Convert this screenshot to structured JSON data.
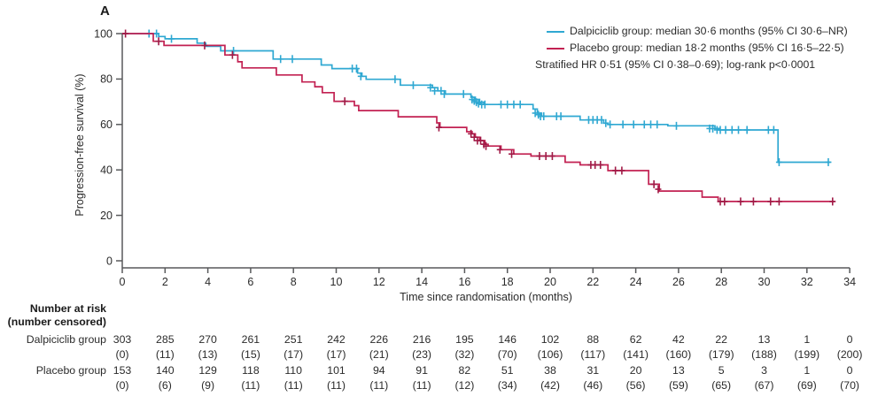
{
  "panel_label": "A",
  "colors": {
    "dalpiciclib": "#2FA8D2",
    "dalpiciclib_censor": "#2FA8D2",
    "placebo": "#C22152",
    "placebo_censor": "#A01A46",
    "axis": "#58595B",
    "text": "#2b2b2b"
  },
  "legend": {
    "items": [
      {
        "label": "Dalpiciclib group: median 30·6 months (95% CI 30·6–NR)",
        "color": "#2FA8D2",
        "swatch": true
      },
      {
        "label": "Placebo group: median 18·2 months (95% CI 16·5–22·5)",
        "color": "#C22152",
        "swatch": true
      },
      {
        "label": "Stratified HR 0·51 (95% CI 0·38–0·69); log-rank p<0·0001",
        "color": "",
        "swatch": false
      }
    ]
  },
  "chart_data": {
    "type": "line",
    "subtype": "kaplan-meier-step",
    "title": "",
    "xlabel": "Time since randomisation (months)",
    "ylabel": "Progression-free survival (%)",
    "xlim": [
      0,
      34
    ],
    "ylim": [
      0,
      100
    ],
    "x_ticks": [
      0,
      2,
      4,
      6,
      8,
      10,
      12,
      14,
      16,
      18,
      20,
      22,
      24,
      26,
      28,
      30,
      32,
      34
    ],
    "y_ticks": [
      0,
      20,
      40,
      60,
      80,
      100
    ],
    "grid": false,
    "legend_position": "top-right",
    "series": [
      {
        "name": "Dalpiciclib group",
        "color": "#2FA8D2",
        "censor_color": "#2FA8D2",
        "start": [
          0,
          100
        ],
        "steps": [
          [
            1.7,
            98.7
          ],
          [
            2.0,
            97.7
          ],
          [
            3.5,
            95.8
          ],
          [
            3.9,
            94.4
          ],
          [
            4.6,
            92.4
          ],
          [
            7.05,
            88.8
          ],
          [
            9.3,
            86.2
          ],
          [
            9.8,
            84.6
          ],
          [
            11.0,
            82.6
          ],
          [
            11.2,
            81.2
          ],
          [
            11.4,
            79.9
          ],
          [
            13.0,
            77.3
          ],
          [
            14.5,
            76.2
          ],
          [
            14.75,
            74.8
          ],
          [
            15.1,
            73.4
          ],
          [
            16.3,
            72.0
          ],
          [
            16.5,
            71.0
          ],
          [
            16.7,
            69.8
          ],
          [
            16.9,
            68.8
          ],
          [
            19.2,
            66.8
          ],
          [
            19.4,
            65.0
          ],
          [
            19.6,
            63.6
          ],
          [
            21.4,
            62.0
          ],
          [
            22.5,
            60.6
          ],
          [
            22.7,
            60.0
          ],
          [
            25.5,
            59.4
          ],
          [
            27.7,
            58.2
          ],
          [
            27.9,
            57.6
          ],
          [
            30.65,
            43.4
          ]
        ],
        "end_month": 33.1,
        "censors": [
          [
            1.25,
            100
          ],
          [
            1.6,
            100
          ],
          [
            2.3,
            97.7
          ],
          [
            5.2,
            92.4
          ],
          [
            7.4,
            88.8
          ],
          [
            7.95,
            88.8
          ],
          [
            10.75,
            84.6
          ],
          [
            10.95,
            84.6
          ],
          [
            11.15,
            81.2
          ],
          [
            12.75,
            79.9
          ],
          [
            13.6,
            77.3
          ],
          [
            14.4,
            76.2
          ],
          [
            14.6,
            74.8
          ],
          [
            14.9,
            74.8
          ],
          [
            15.05,
            73.4
          ],
          [
            15.95,
            73.4
          ],
          [
            16.35,
            71.0
          ],
          [
            16.45,
            70.4
          ],
          [
            16.55,
            69.8
          ],
          [
            16.65,
            69.2
          ],
          [
            16.8,
            68.8
          ],
          [
            16.95,
            68.8
          ],
          [
            17.7,
            68.8
          ],
          [
            18.0,
            68.8
          ],
          [
            18.3,
            68.8
          ],
          [
            18.6,
            68.8
          ],
          [
            19.3,
            65.0
          ],
          [
            19.45,
            64.3
          ],
          [
            19.55,
            63.6
          ],
          [
            19.7,
            63.6
          ],
          [
            20.3,
            63.6
          ],
          [
            20.5,
            63.6
          ],
          [
            21.8,
            62.0
          ],
          [
            22.0,
            62.0
          ],
          [
            22.2,
            62.0
          ],
          [
            22.4,
            62.0
          ],
          [
            22.6,
            60.6
          ],
          [
            22.8,
            60.0
          ],
          [
            23.4,
            60.0
          ],
          [
            23.9,
            60.0
          ],
          [
            24.4,
            60.0
          ],
          [
            24.7,
            60.0
          ],
          [
            25.0,
            60.0
          ],
          [
            25.9,
            59.4
          ],
          [
            27.45,
            58.2
          ],
          [
            27.6,
            58.2
          ],
          [
            27.8,
            57.6
          ],
          [
            27.95,
            57.6
          ],
          [
            28.2,
            57.6
          ],
          [
            28.5,
            57.6
          ],
          [
            28.8,
            57.6
          ],
          [
            29.2,
            57.6
          ],
          [
            30.2,
            57.6
          ],
          [
            30.45,
            57.6
          ],
          [
            30.7,
            43.4
          ],
          [
            33.0,
            43.4
          ]
        ]
      },
      {
        "name": "Placebo group",
        "color": "#C22152",
        "censor_color": "#A01A46",
        "start": [
          0,
          100
        ],
        "steps": [
          [
            1.45,
            96.6
          ],
          [
            1.95,
            94.8
          ],
          [
            4.8,
            90.6
          ],
          [
            5.4,
            87.6
          ],
          [
            5.6,
            84.9
          ],
          [
            7.2,
            81.8
          ],
          [
            8.4,
            78.7
          ],
          [
            9.0,
            76.6
          ],
          [
            9.35,
            74.0
          ],
          [
            9.9,
            70.2
          ],
          [
            10.85,
            68.3
          ],
          [
            11.05,
            66.1
          ],
          [
            12.9,
            63.4
          ],
          [
            14.7,
            60.7
          ],
          [
            14.85,
            58.7
          ],
          [
            16.1,
            56.8
          ],
          [
            16.35,
            55.9
          ],
          [
            16.5,
            54.4
          ],
          [
            16.7,
            52.9
          ],
          [
            16.95,
            51.3
          ],
          [
            17.1,
            50.5
          ],
          [
            17.7,
            48.9
          ],
          [
            18.3,
            47.0
          ],
          [
            19.1,
            46.1
          ],
          [
            20.7,
            43.4
          ],
          [
            21.4,
            42.2
          ],
          [
            22.7,
            39.7
          ],
          [
            24.6,
            33.7
          ],
          [
            25.1,
            30.7
          ],
          [
            27.1,
            28.0
          ],
          [
            27.85,
            26.1
          ]
        ],
        "end_month": 33.3,
        "censors": [
          [
            0.15,
            100
          ],
          [
            1.7,
            96.6
          ],
          [
            3.85,
            94.8
          ],
          [
            5.15,
            90.6
          ],
          [
            10.4,
            70.2
          ],
          [
            14.8,
            58.7
          ],
          [
            16.3,
            55.9
          ],
          [
            16.45,
            54.4
          ],
          [
            16.6,
            52.9
          ],
          [
            16.75,
            52.9
          ],
          [
            16.9,
            51.3
          ],
          [
            17.0,
            50.5
          ],
          [
            17.65,
            48.9
          ],
          [
            18.2,
            47.0
          ],
          [
            19.5,
            46.1
          ],
          [
            19.8,
            46.1
          ],
          [
            20.1,
            46.1
          ],
          [
            21.9,
            42.2
          ],
          [
            22.1,
            42.2
          ],
          [
            22.35,
            42.2
          ],
          [
            23.05,
            39.7
          ],
          [
            23.35,
            39.7
          ],
          [
            24.85,
            33.7
          ],
          [
            25.05,
            31.5
          ],
          [
            27.95,
            26.1
          ],
          [
            28.15,
            26.1
          ],
          [
            28.9,
            26.1
          ],
          [
            29.5,
            26.1
          ],
          [
            30.3,
            26.1
          ],
          [
            30.7,
            26.1
          ],
          [
            33.2,
            26.1
          ]
        ]
      }
    ]
  },
  "risk_table": {
    "header_line1": "Number at risk",
    "header_line2": "(number censored)",
    "time_points": [
      0,
      2,
      4,
      6,
      8,
      10,
      12,
      14,
      16,
      18,
      20,
      22,
      24,
      26,
      28,
      30,
      32,
      34
    ],
    "groups": [
      {
        "label": "Dalpiciclib group",
        "at_risk": [
          "303",
          "285",
          "270",
          "261",
          "251",
          "242",
          "226",
          "216",
          "195",
          "146",
          "102",
          "88",
          "62",
          "42",
          "22",
          "13",
          "1",
          "0"
        ],
        "censored": [
          "(0)",
          "(11)",
          "(13)",
          "(15)",
          "(17)",
          "(17)",
          "(21)",
          "(23)",
          "(32)",
          "(70)",
          "(106)",
          "(117)",
          "(141)",
          "(160)",
          "(179)",
          "(188)",
          "(199)",
          "(200)"
        ]
      },
      {
        "label": "Placebo group",
        "at_risk": [
          "153",
          "140",
          "129",
          "118",
          "110",
          "101",
          "94",
          "91",
          "82",
          "51",
          "38",
          "31",
          "20",
          "13",
          "5",
          "3",
          "1",
          "0"
        ],
        "censored": [
          "(0)",
          "(6)",
          "(9)",
          "(11)",
          "(11)",
          "(11)",
          "(11)",
          "(11)",
          "(12)",
          "(34)",
          "(42)",
          "(46)",
          "(56)",
          "(59)",
          "(65)",
          "(67)",
          "(69)",
          "(70)"
        ]
      }
    ]
  }
}
